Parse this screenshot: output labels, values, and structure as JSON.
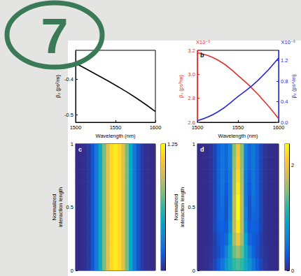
{
  "badge": {
    "text": "7"
  },
  "chart_data": [
    {
      "type": "line",
      "xlabel": "Wavelength (nm)",
      "ylabel": "β₂ (ps²/m)",
      "x": [
        1500,
        1525,
        1550,
        1575,
        1600
      ],
      "series": [
        {
          "color": "#000000",
          "values": [
            -0.356,
            -0.386,
            -0.417,
            -0.451,
            -0.49
          ]
        }
      ],
      "xlim": [
        1500,
        1600
      ],
      "xticks": [
        1500,
        1550,
        1600
      ],
      "ylim": [
        -0.52,
        -0.32
      ],
      "yticks": [
        -0.5,
        -0.4
      ]
    },
    {
      "type": "line",
      "title": "b",
      "xlabel": "Wavelength (nm)",
      "ylabel": "β₃ (ps³/m)",
      "y2label": "β₄ (ps⁴/m)",
      "y_multiplier": "X10⁻³",
      "y2_multiplier": "X10⁻⁵",
      "x": [
        1500,
        1525,
        1550,
        1575,
        1600
      ],
      "series": [
        {
          "color": "#e0302a",
          "values": [
            3.18,
            3.12,
            2.99,
            2.83,
            2.63
          ]
        },
        {
          "color": "#2a2ad8",
          "axis": "y2",
          "values": [
            0.03,
            0.2,
            0.5,
            0.82,
            1.25
          ]
        }
      ],
      "xlim": [
        1500,
        1600
      ],
      "xticks": [
        1500,
        1550,
        1600
      ],
      "ylim": [
        2.6,
        3.2
      ],
      "yticks": [
        2.6,
        2.8,
        {
          "value": 3,
          "label": "3.0"
        },
        3.2
      ],
      "y2lim": [
        0,
        1.4
      ],
      "y2ticks": [
        {
          "value": 0,
          "label": "0.0"
        },
        0.4,
        0.8,
        1.2
      ]
    },
    {
      "type": "heatmap",
      "title": "c",
      "ylabel": "Normalized\ninteraction length",
      "ylim": [
        0,
        1
      ],
      "yticks": [
        0,
        0.5,
        1
      ],
      "y": [
        0.05,
        0.15,
        0.25,
        0.35,
        0.45,
        0.55,
        0.65,
        0.75,
        0.85,
        0.95
      ],
      "cells": [
        [
          0,
          0.01,
          0.02,
          0.05,
          0.13,
          0.28,
          0.5,
          0.75,
          1.0,
          1.15,
          1.2,
          1.15,
          1.0,
          0.75,
          0.5,
          0.28,
          0.13,
          0.05,
          0.02,
          0.01,
          0
        ],
        [
          0,
          0.01,
          0.02,
          0.05,
          0.13,
          0.28,
          0.5,
          0.75,
          1.0,
          1.15,
          1.2,
          1.15,
          1.0,
          0.75,
          0.5,
          0.28,
          0.13,
          0.05,
          0.02,
          0.01,
          0
        ],
        [
          0,
          0.01,
          0.02,
          0.05,
          0.13,
          0.28,
          0.5,
          0.75,
          1.0,
          1.15,
          1.2,
          1.15,
          1.0,
          0.75,
          0.5,
          0.28,
          0.13,
          0.05,
          0.02,
          0.01,
          0
        ],
        [
          0,
          0.01,
          0.02,
          0.05,
          0.13,
          0.28,
          0.5,
          0.75,
          1.0,
          1.15,
          1.2,
          1.15,
          1.0,
          0.75,
          0.5,
          0.28,
          0.13,
          0.05,
          0.02,
          0.01,
          0
        ],
        [
          0,
          0.01,
          0.02,
          0.05,
          0.13,
          0.28,
          0.5,
          0.75,
          1.0,
          1.15,
          1.2,
          1.15,
          1.0,
          0.75,
          0.5,
          0.28,
          0.13,
          0.05,
          0.02,
          0.01,
          0
        ],
        [
          0,
          0.01,
          0.02,
          0.05,
          0.13,
          0.28,
          0.5,
          0.75,
          1.0,
          1.15,
          1.2,
          1.15,
          1.0,
          0.75,
          0.5,
          0.28,
          0.13,
          0.05,
          0.02,
          0.01,
          0
        ],
        [
          0,
          0.01,
          0.02,
          0.05,
          0.13,
          0.28,
          0.5,
          0.75,
          1.0,
          1.15,
          1.2,
          1.15,
          1.0,
          0.75,
          0.5,
          0.28,
          0.13,
          0.05,
          0.02,
          0.01,
          0
        ],
        [
          0,
          0.01,
          0.02,
          0.05,
          0.13,
          0.28,
          0.5,
          0.75,
          1.0,
          1.15,
          1.2,
          1.15,
          1.0,
          0.75,
          0.5,
          0.28,
          0.13,
          0.05,
          0.02,
          0.01,
          0
        ],
        [
          0,
          0.01,
          0.02,
          0.05,
          0.13,
          0.28,
          0.5,
          0.75,
          1.0,
          1.15,
          1.2,
          1.15,
          1.0,
          0.75,
          0.5,
          0.28,
          0.13,
          0.05,
          0.02,
          0.01,
          0
        ],
        [
          0,
          0.01,
          0.02,
          0.05,
          0.13,
          0.28,
          0.5,
          0.75,
          1.0,
          1.15,
          1.2,
          1.15,
          1.0,
          0.75,
          0.5,
          0.28,
          0.13,
          0.05,
          0.02,
          0.01,
          0
        ]
      ],
      "colorbar": {
        "range": [
          0,
          1.25
        ],
        "ticks": [
          1.25
        ]
      }
    },
    {
      "type": "heatmap",
      "title": "d",
      "ylabel": "Normalized\ninteraction length",
      "ylim": [
        0,
        1
      ],
      "yticks": [
        0,
        0.5,
        1
      ],
      "y": [
        0.05,
        0.15,
        0.25,
        0.35,
        0.45,
        0.55,
        0.65,
        0.75,
        0.85,
        0.95
      ],
      "cells": [
        [
          0,
          0.01,
          0.03,
          0.07,
          0.15,
          0.3,
          0.5,
          0.75,
          1.0,
          1.2,
          1.3,
          1.2,
          1.0,
          0.75,
          0.5,
          0.3,
          0.15,
          0.07,
          0.03,
          0.01,
          0
        ],
        [
          0,
          0.01,
          0.03,
          0.06,
          0.12,
          0.22,
          0.35,
          0.6,
          1.0,
          1.4,
          1.6,
          1.4,
          1.0,
          0.6,
          0.35,
          0.22,
          0.12,
          0.06,
          0.03,
          0.01,
          0
        ],
        [
          0,
          0.01,
          0.02,
          0.05,
          0.12,
          0.25,
          0.3,
          0.4,
          0.9,
          1.6,
          2.0,
          1.6,
          0.9,
          0.4,
          0.3,
          0.25,
          0.12,
          0.05,
          0.02,
          0.01,
          0
        ],
        [
          0,
          0.01,
          0.02,
          0.05,
          0.15,
          0.3,
          0.35,
          0.3,
          0.7,
          1.7,
          2.3,
          1.7,
          0.7,
          0.3,
          0.35,
          0.3,
          0.15,
          0.05,
          0.02,
          0.01,
          0
        ],
        [
          0,
          0.01,
          0.02,
          0.05,
          0.15,
          0.35,
          0.4,
          0.25,
          0.6,
          1.7,
          2.4,
          1.7,
          0.6,
          0.25,
          0.4,
          0.35,
          0.15,
          0.05,
          0.02,
          0.01,
          0
        ],
        [
          0,
          0.01,
          0.02,
          0.05,
          0.15,
          0.35,
          0.45,
          0.25,
          0.55,
          1.7,
          2.4,
          1.7,
          0.55,
          0.25,
          0.45,
          0.35,
          0.15,
          0.05,
          0.02,
          0.01,
          0
        ],
        [
          0,
          0.01,
          0.02,
          0.06,
          0.15,
          0.35,
          0.5,
          0.3,
          0.55,
          1.65,
          2.3,
          1.65,
          0.55,
          0.3,
          0.5,
          0.35,
          0.15,
          0.06,
          0.02,
          0.01,
          0
        ],
        [
          0,
          0.01,
          0.02,
          0.06,
          0.15,
          0.35,
          0.5,
          0.35,
          0.55,
          1.6,
          2.2,
          1.6,
          0.55,
          0.35,
          0.5,
          0.35,
          0.15,
          0.06,
          0.02,
          0.01,
          0
        ],
        [
          0,
          0.01,
          0.02,
          0.06,
          0.15,
          0.35,
          0.5,
          0.4,
          0.6,
          1.55,
          2.1,
          1.55,
          0.6,
          0.4,
          0.5,
          0.35,
          0.15,
          0.06,
          0.02,
          0.01,
          0
        ],
        [
          0,
          0.01,
          0.02,
          0.06,
          0.15,
          0.35,
          0.5,
          0.4,
          0.6,
          1.5,
          2.0,
          1.5,
          0.6,
          0.4,
          0.5,
          0.35,
          0.15,
          0.06,
          0.02,
          0.01,
          0
        ]
      ],
      "colorbar": {
        "range": [
          0,
          2.4
        ],
        "ticks": [
          0,
          2
        ]
      }
    }
  ]
}
